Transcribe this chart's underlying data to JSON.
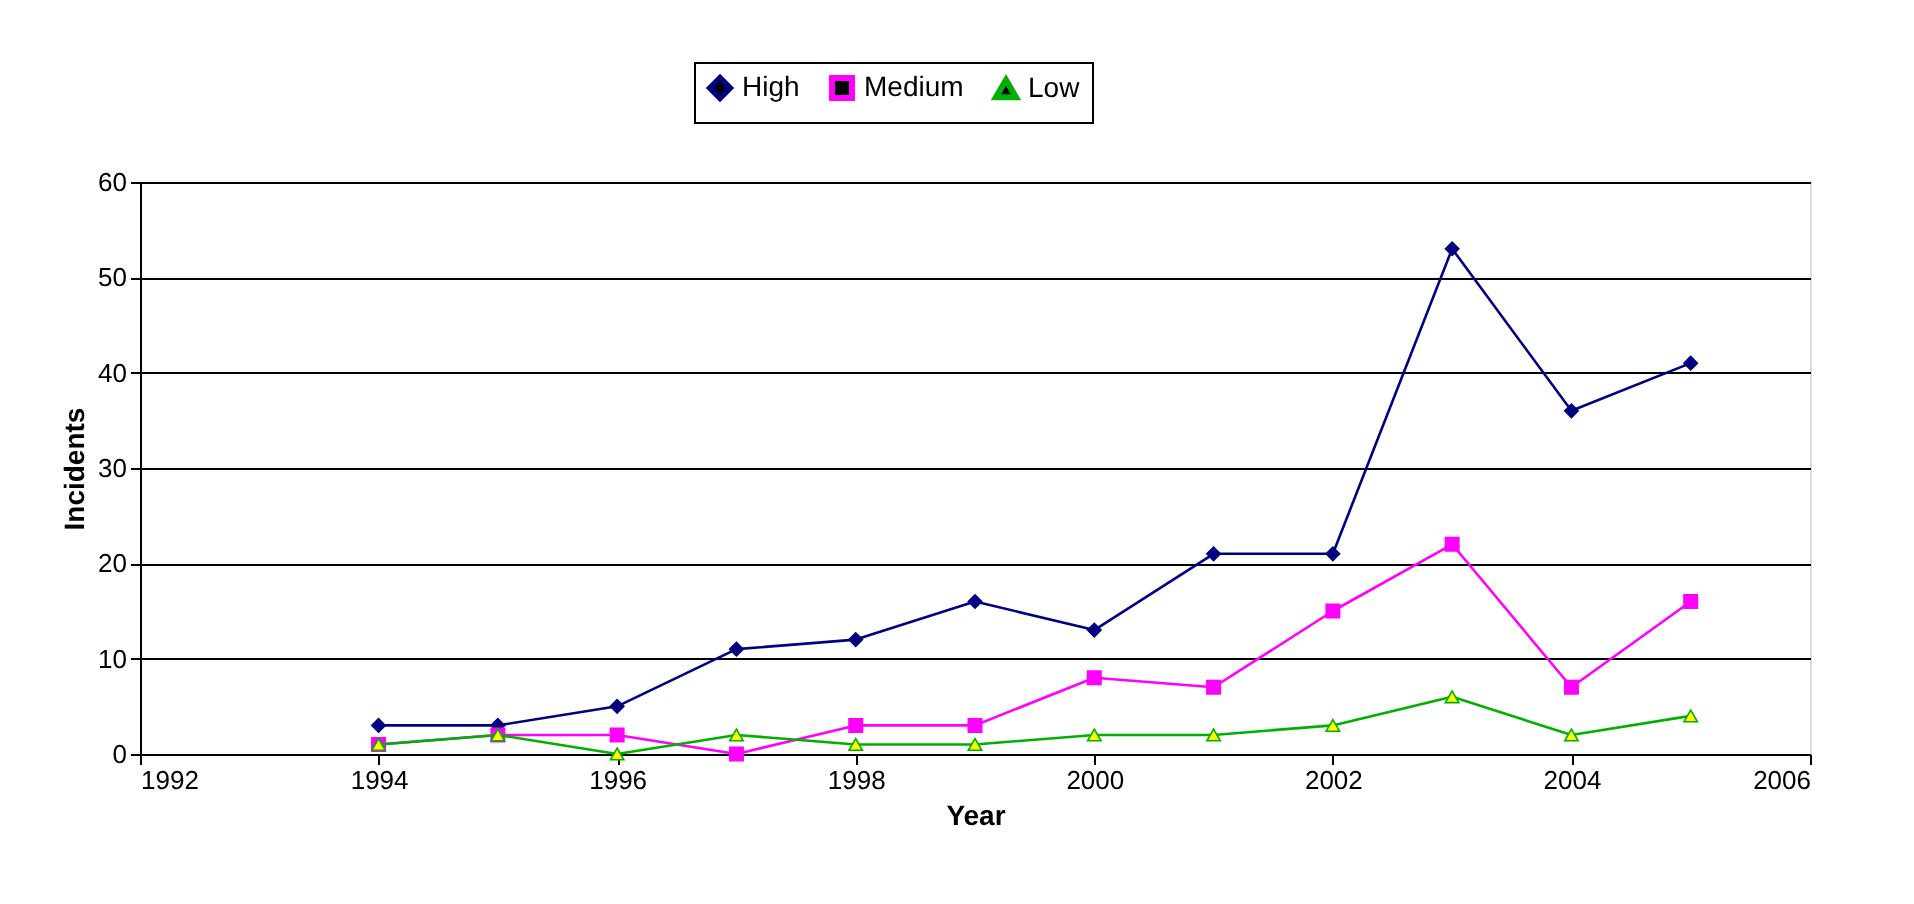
{
  "chart_data": {
    "type": "line",
    "xlabel": "Year",
    "ylabel": "Incidents",
    "x": [
      1994,
      1995,
      1996,
      1997,
      1998,
      1999,
      2000,
      2001,
      2002,
      2003,
      2004,
      2005
    ],
    "series": [
      {
        "name": "High",
        "color": "#000080",
        "marker": "diamond",
        "values": [
          3,
          3,
          5,
          11,
          12,
          16,
          13,
          21,
          21,
          53,
          36,
          41
        ]
      },
      {
        "name": "Medium",
        "color": "#ff00ff",
        "marker": "square",
        "values": [
          1,
          2,
          2,
          0,
          3,
          3,
          8,
          7,
          15,
          22,
          7,
          16
        ]
      },
      {
        "name": "Low",
        "color": "#00b000",
        "marker": "triangle",
        "colors": [
          "#ffff00",
          "#ffff00",
          "#ffff00",
          "#ffff00",
          "#ffff00",
          "#ffff00",
          "#ffff00",
          "#ffff00",
          "#ffff00",
          "#ffff00",
          "#ffff00",
          "#ffff00"
        ],
        "values": [
          1,
          2,
          0,
          2,
          1,
          1,
          2,
          2,
          3,
          6,
          2,
          4
        ]
      }
    ],
    "xlim": [
      1992,
      2006
    ],
    "xticks": [
      1992,
      1994,
      1996,
      1998,
      2000,
      2002,
      2004,
      2006
    ],
    "ylim": [
      0,
      60
    ],
    "yticks": [
      0,
      10,
      20,
      30,
      40,
      50,
      60
    ],
    "grid": "y",
    "legend": "top",
    "line_style": "solid"
  }
}
